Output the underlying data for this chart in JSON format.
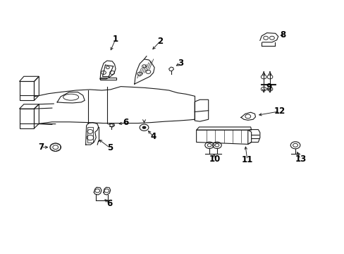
{
  "background_color": "#ffffff",
  "line_color": "#1a1a1a",
  "text_color": "#000000",
  "fig_width": 4.89,
  "fig_height": 3.6,
  "dpi": 100,
  "font_size": 8.5,
  "lw": 0.8,
  "label_positions": {
    "1": [
      0.335,
      0.845,
      0.33,
      0.79
    ],
    "2": [
      0.455,
      0.835,
      0.45,
      0.795
    ],
    "3": [
      0.52,
      0.748,
      0.497,
      0.735
    ],
    "4": [
      0.435,
      0.452,
      0.418,
      0.49
    ],
    "5": [
      0.32,
      0.415,
      0.295,
      0.44
    ],
    "6a": [
      0.36,
      0.512,
      0.33,
      0.505
    ],
    "6b": [
      0.31,
      0.202,
      0.295,
      0.228
    ],
    "7": [
      0.123,
      0.42,
      0.153,
      0.42
    ],
    "8": [
      0.82,
      0.862,
      0.8,
      0.855
    ],
    "9": [
      0.77,
      0.66,
      0.77,
      0.66
    ],
    "10": [
      0.62,
      0.378,
      0.622,
      0.408
    ],
    "11": [
      0.718,
      0.375,
      0.71,
      0.43
    ],
    "12": [
      0.807,
      0.56,
      0.77,
      0.55
    ],
    "13": [
      0.87,
      0.375,
      0.858,
      0.415
    ]
  }
}
